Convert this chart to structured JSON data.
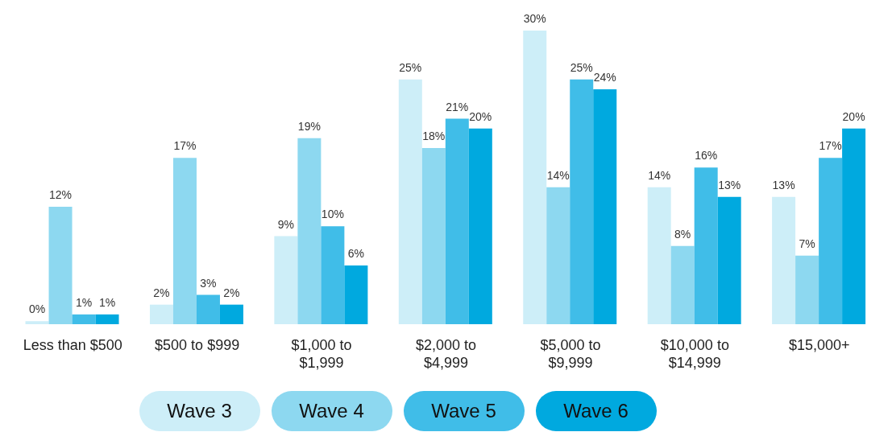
{
  "chart_data": {
    "type": "bar",
    "categories": [
      "Less than $500",
      "$500 to $999",
      "$1,000 to $1,999",
      "$2,000 to $4,999",
      "$5,000 to $9,999",
      "$10,000 to $14,999",
      "$15,000+"
    ],
    "series": [
      {
        "name": "Wave 3",
        "color": "#cdeef8",
        "values": [
          0.3,
          2,
          9,
          25,
          30,
          14,
          13
        ],
        "value_labels": [
          "0%",
          "2%",
          "9%",
          "25%",
          "30%",
          "14%",
          "13%"
        ]
      },
      {
        "name": "Wave 4",
        "color": "#8dd8f0",
        "values": [
          12,
          17,
          19,
          18,
          14,
          8,
          7
        ],
        "value_labels": [
          "12%",
          "17%",
          "19%",
          "18%",
          "14%",
          "8%",
          "7%"
        ]
      },
      {
        "name": "Wave 5",
        "color": "#40bde8",
        "values": [
          1,
          3,
          10,
          21,
          25,
          16,
          17
        ],
        "value_labels": [
          "1%",
          "3%",
          "10%",
          "21%",
          "25%",
          "16%",
          "17%"
        ]
      },
      {
        "name": "Wave 6",
        "color": "#00a9df",
        "values": [
          1,
          2,
          6,
          20,
          24,
          13,
          20
        ],
        "value_labels": [
          "1%",
          "2%",
          "6%",
          "20%",
          "24%",
          "13%",
          "20%"
        ]
      }
    ],
    "grid": false,
    "legend": "bottom"
  }
}
